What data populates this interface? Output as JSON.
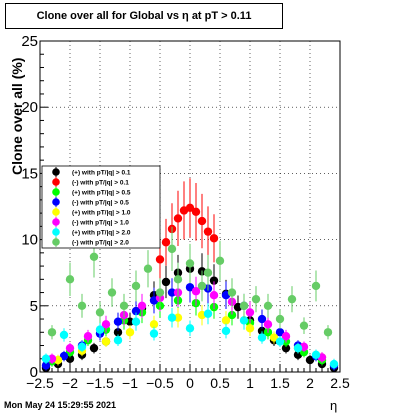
{
  "chart_data": {
    "type": "scatter",
    "title": "Clone  over all for Global vs   η at pT > 0.11",
    "xlabel": "η",
    "ylabel": "Clone  over all (%)",
    "xlim": [
      -2.5,
      2.5
    ],
    "ylim": [
      0,
      25
    ],
    "x_ticks": [
      "−2.5",
      "−2",
      "−1.5",
      "−1",
      "−0.5",
      "0",
      "0.5",
      "1",
      "1.5",
      "2",
      "2.5"
    ],
    "y_ticks": [
      "0",
      "5",
      "10",
      "15",
      "20",
      "25"
    ],
    "grid": true,
    "legend_position": "top-left",
    "series": [
      {
        "name": "(+) with pT/|q| > 0.1",
        "color": "#000000",
        "x": [
          -2.4,
          -2.2,
          -2.0,
          -1.8,
          -1.6,
          -1.4,
          -1.2,
          -1.0,
          -0.8,
          -0.6,
          -0.4,
          -0.2,
          0.0,
          0.2,
          0.4,
          0.6,
          0.8,
          1.0,
          1.2,
          1.4,
          1.6,
          1.8,
          2.0,
          2.2,
          2.4
        ],
        "y": [
          0.3,
          0.6,
          1.0,
          1.3,
          1.8,
          2.3,
          3.0,
          3.8,
          4.8,
          5.8,
          6.8,
          7.5,
          7.8,
          7.6,
          6.9,
          5.9,
          4.9,
          3.9,
          3.1,
          2.4,
          1.8,
          1.3,
          0.9,
          0.6,
          0.3
        ]
      },
      {
        "name": "(-) with pT/|q| > 0.1",
        "color": "#ff0000",
        "x": [
          -0.5,
          -0.4,
          -0.3,
          -0.2,
          -0.1,
          0.0,
          0.1,
          0.2,
          0.3,
          0.4
        ],
        "y": [
          8.5,
          9.8,
          10.8,
          11.6,
          12.2,
          12.4,
          12.1,
          11.4,
          10.6,
          10.1
        ]
      },
      {
        "name": "(+) with pT/|q| > 0.5",
        "color": "#00ff00",
        "x": [
          -2.3,
          -2.0,
          -1.7,
          -1.4,
          -1.1,
          -0.8,
          -0.5,
          -0.2,
          0.1,
          0.4,
          0.7,
          1.0,
          1.3,
          1.6,
          1.9,
          2.2
        ],
        "y": [
          0.8,
          1.5,
          2.4,
          3.2,
          3.9,
          4.5,
          5.0,
          5.4,
          5.2,
          4.9,
          4.3,
          3.7,
          3.0,
          2.3,
          1.5,
          0.9
        ]
      },
      {
        "name": "(-) with pT/|q| > 0.5",
        "color": "#0000ff",
        "x": [
          -2.4,
          -2.1,
          -1.8,
          -1.5,
          -1.2,
          -0.9,
          -0.6,
          -0.3,
          0.0,
          0.3,
          0.6,
          0.9,
          1.2,
          1.5,
          1.8,
          2.1,
          2.4
        ],
        "y": [
          0.5,
          1.2,
          2.0,
          2.9,
          3.8,
          4.6,
          5.4,
          6.0,
          6.4,
          6.3,
          5.8,
          5.0,
          4.0,
          3.0,
          2.0,
          1.2,
          0.5
        ]
      },
      {
        "name": "(+) with pT/|q| > 1.0",
        "color": "#ffff00",
        "x": [
          -2.2,
          -1.8,
          -1.4,
          -1.0,
          -0.6,
          -0.2,
          0.2,
          0.6,
          1.0,
          1.4,
          1.8,
          2.2
        ],
        "y": [
          0.9,
          1.6,
          2.3,
          3.0,
          3.6,
          4.1,
          4.3,
          3.9,
          3.3,
          2.6,
          1.8,
          1.1
        ]
      },
      {
        "name": "(-) with pT/|q| > 1.0",
        "color": "#ff00ff",
        "x": [
          -2.3,
          -2.0,
          -1.7,
          -1.4,
          -1.1,
          -0.8,
          -0.5,
          -0.2,
          0.1,
          0.4,
          0.7,
          1.0,
          1.3,
          1.6,
          1.9,
          2.2
        ],
        "y": [
          1.0,
          1.8,
          2.7,
          3.6,
          4.3,
          5.0,
          5.6,
          6.0,
          6.1,
          5.8,
          5.3,
          4.5,
          3.6,
          2.7,
          1.9,
          1.1
        ]
      },
      {
        "name": "(+) with pT/|q| > 2.0",
        "color": "#00ffff",
        "x": [
          -2.4,
          -2.1,
          -1.8,
          -1.5,
          -1.2,
          -0.9,
          -0.6,
          -0.3,
          0.0,
          0.3,
          0.6,
          0.9,
          1.2,
          1.5,
          1.8,
          2.1,
          2.4
        ],
        "y": [
          1.0,
          2.8,
          1.9,
          3.2,
          2.4,
          3.8,
          2.9,
          4.1,
          3.3,
          4.4,
          3.1,
          3.9,
          2.6,
          2.3,
          1.8,
          1.3,
          0.6
        ]
      },
      {
        "name": "(-) with pT/|q| > 2.0",
        "color": "#66cc66",
        "x": [
          -2.3,
          -2.0,
          -1.8,
          -1.6,
          -1.5,
          -1.3,
          -1.1,
          -0.9,
          -0.7,
          -0.5,
          -0.3,
          -0.2,
          0.0,
          0.2,
          0.3,
          0.5,
          0.7,
          0.9,
          1.1,
          1.3,
          1.5,
          1.7,
          1.9,
          2.1,
          2.3
        ],
        "y": [
          3.0,
          7.0,
          5.0,
          8.7,
          4.5,
          6.0,
          5.0,
          6.5,
          7.8,
          6.0,
          9.3,
          7.0,
          8.2,
          6.5,
          7.5,
          8.4,
          6.0,
          5.0,
          5.5,
          5.0,
          4.0,
          5.5,
          3.5,
          6.5,
          3.0
        ]
      }
    ]
  },
  "footer": {
    "datestamp": "Mon May 24 15:29:55 2021"
  }
}
